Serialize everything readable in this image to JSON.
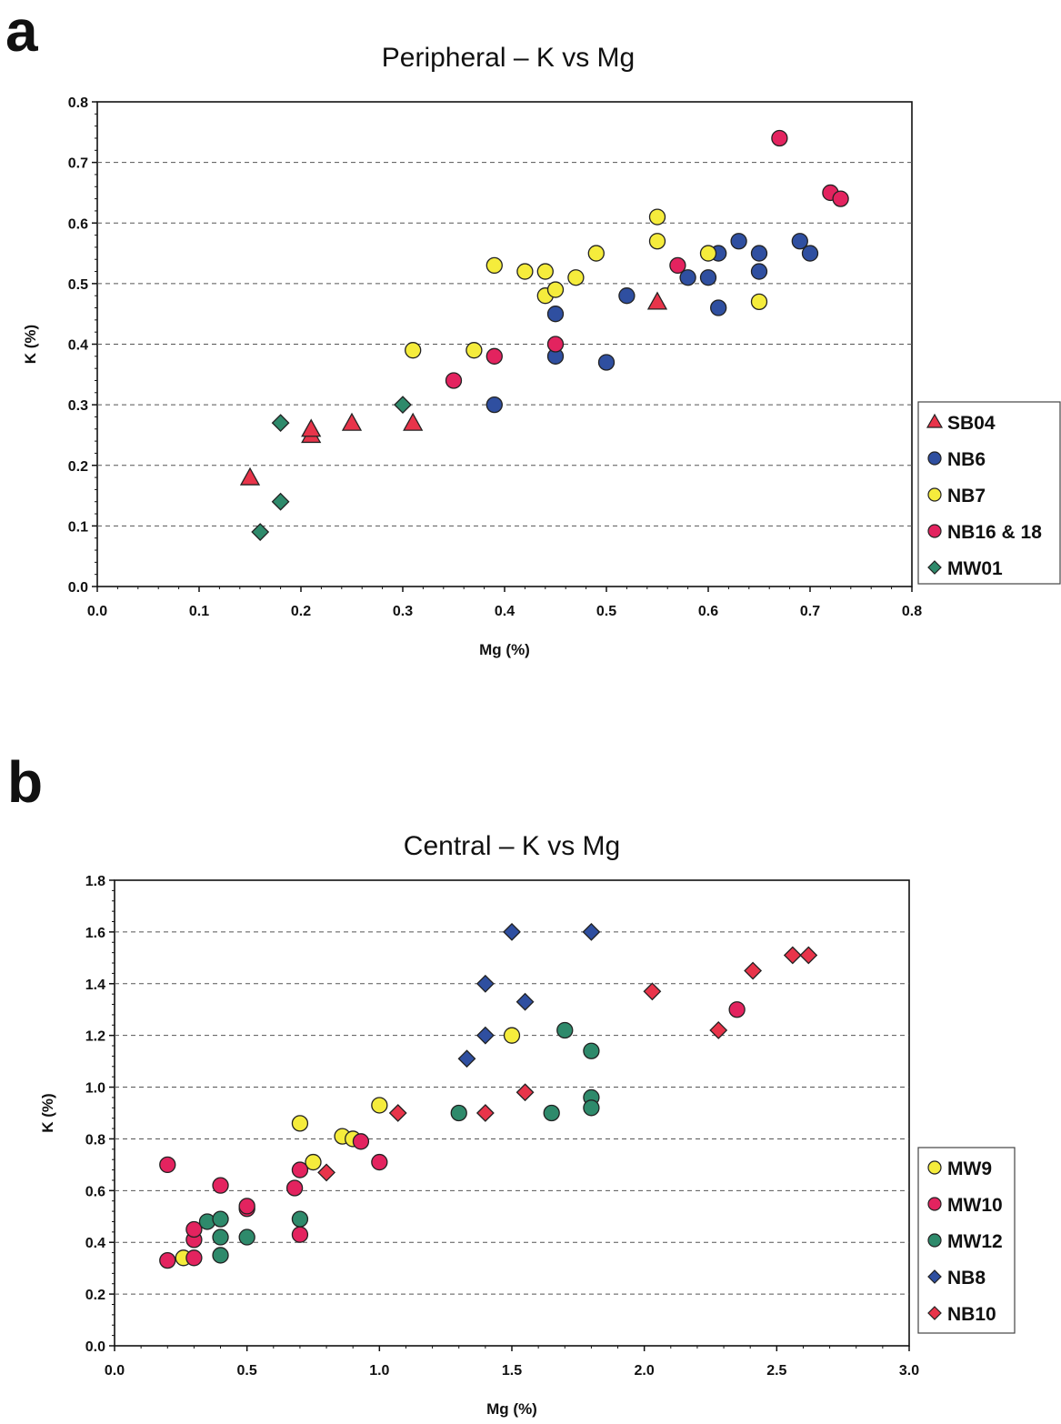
{
  "panels": {
    "a": {
      "letter": "a"
    },
    "b": {
      "letter": "b"
    }
  },
  "chart_data": [
    {
      "type": "scatter",
      "title": "Peripheral – K vs Mg",
      "xlabel": "Mg (%)",
      "ylabel": "K (%)",
      "xlim": [
        0,
        0.8
      ],
      "ylim": [
        0,
        0.8
      ],
      "xticks": [
        "0.0",
        "0.1",
        "0.2",
        "0.3",
        "0.4",
        "0.5",
        "0.6",
        "0.7",
        "0.8"
      ],
      "yticks": [
        "0.0",
        "0.1",
        "0.2",
        "0.3",
        "0.4",
        "0.5",
        "0.6",
        "0.7",
        "0.8"
      ],
      "grid": "horizontal dashed",
      "legend_position": "right",
      "series": [
        {
          "name": "SB04",
          "marker": "triangle",
          "color": "#e8344a",
          "points": [
            [
              0.15,
              0.18
            ],
            [
              0.21,
              0.25
            ],
            [
              0.21,
              0.26
            ],
            [
              0.25,
              0.27
            ],
            [
              0.31,
              0.27
            ],
            [
              0.55,
              0.47
            ]
          ]
        },
        {
          "name": "NB6",
          "marker": "circle",
          "color": "#2f4fa0",
          "points": [
            [
              0.39,
              0.3
            ],
            [
              0.45,
              0.38
            ],
            [
              0.45,
              0.45
            ],
            [
              0.5,
              0.37
            ],
            [
              0.52,
              0.48
            ],
            [
              0.58,
              0.51
            ],
            [
              0.6,
              0.51
            ],
            [
              0.61,
              0.55
            ],
            [
              0.61,
              0.46
            ],
            [
              0.63,
              0.57
            ],
            [
              0.65,
              0.55
            ],
            [
              0.65,
              0.52
            ],
            [
              0.69,
              0.57
            ],
            [
              0.7,
              0.55
            ]
          ]
        },
        {
          "name": "NB7",
          "marker": "circle",
          "color": "#f5ec3c",
          "points": [
            [
              0.31,
              0.39
            ],
            [
              0.37,
              0.39
            ],
            [
              0.39,
              0.53
            ],
            [
              0.42,
              0.52
            ],
            [
              0.44,
              0.52
            ],
            [
              0.44,
              0.48
            ],
            [
              0.45,
              0.49
            ],
            [
              0.47,
              0.51
            ],
            [
              0.49,
              0.55
            ],
            [
              0.55,
              0.61
            ],
            [
              0.55,
              0.57
            ],
            [
              0.6,
              0.55
            ],
            [
              0.65,
              0.47
            ]
          ]
        },
        {
          "name": "NB16 & 18",
          "marker": "circle",
          "color": "#e3235f",
          "points": [
            [
              0.35,
              0.34
            ],
            [
              0.39,
              0.38
            ],
            [
              0.45,
              0.4
            ],
            [
              0.57,
              0.53
            ],
            [
              0.67,
              0.74
            ],
            [
              0.72,
              0.65
            ],
            [
              0.73,
              0.64
            ]
          ]
        },
        {
          "name": "MW01",
          "marker": "diamond",
          "color": "#2e8a6b",
          "points": [
            [
              0.16,
              0.09
            ],
            [
              0.18,
              0.14
            ],
            [
              0.18,
              0.27
            ],
            [
              0.3,
              0.3
            ]
          ]
        }
      ]
    },
    {
      "type": "scatter",
      "title": "Central – K vs Mg",
      "xlabel": "Mg (%)",
      "ylabel": "K (%)",
      "xlim": [
        0,
        3.0
      ],
      "ylim": [
        0,
        1.8
      ],
      "xticks": [
        "0.0",
        "0.5",
        "1.0",
        "1.5",
        "2.0",
        "2.5",
        "3.0"
      ],
      "yticks": [
        "0.0",
        "0.2",
        "0.4",
        "0.6",
        "0.8",
        "1.0",
        "1.2",
        "1.4",
        "1.6",
        "1.8"
      ],
      "grid": "horizontal dashed",
      "legend_position": "right",
      "series": [
        {
          "name": "MW9",
          "marker": "circle",
          "color": "#f5ec3c",
          "points": [
            [
              0.26,
              0.34
            ],
            [
              0.7,
              0.86
            ],
            [
              0.75,
              0.71
            ],
            [
              0.86,
              0.81
            ],
            [
              0.9,
              0.8
            ],
            [
              1.0,
              0.93
            ],
            [
              1.5,
              1.2
            ]
          ]
        },
        {
          "name": "MW10",
          "marker": "circle",
          "color": "#e3235f",
          "points": [
            [
              0.2,
              0.33
            ],
            [
              0.2,
              0.7
            ],
            [
              0.3,
              0.34
            ],
            [
              0.3,
              0.41
            ],
            [
              0.3,
              0.45
            ],
            [
              0.4,
              0.62
            ],
            [
              0.5,
              0.53
            ],
            [
              0.5,
              0.54
            ],
            [
              0.68,
              0.61
            ],
            [
              0.7,
              0.68
            ],
            [
              0.7,
              0.43
            ],
            [
              0.93,
              0.79
            ],
            [
              1.0,
              0.71
            ],
            [
              2.35,
              1.3
            ]
          ]
        },
        {
          "name": "MW12",
          "marker": "circle",
          "color": "#2e8a6b",
          "points": [
            [
              0.35,
              0.48
            ],
            [
              0.4,
              0.49
            ],
            [
              0.4,
              0.42
            ],
            [
              0.4,
              0.35
            ],
            [
              0.5,
              0.42
            ],
            [
              0.7,
              0.49
            ],
            [
              1.3,
              0.9
            ],
            [
              1.65,
              0.9
            ],
            [
              1.7,
              1.22
            ],
            [
              1.8,
              1.14
            ],
            [
              1.8,
              0.96
            ],
            [
              1.8,
              0.92
            ]
          ]
        },
        {
          "name": "NB8",
          "marker": "diamond",
          "color": "#2f4fa0",
          "points": [
            [
              1.33,
              1.11
            ],
            [
              1.4,
              1.4
            ],
            [
              1.4,
              1.2
            ],
            [
              1.5,
              1.6
            ],
            [
              1.55,
              1.33
            ],
            [
              1.8,
              1.6
            ]
          ]
        },
        {
          "name": "NB10",
          "marker": "diamond",
          "color": "#e8344a",
          "points": [
            [
              0.8,
              0.67
            ],
            [
              1.07,
              0.9
            ],
            [
              1.4,
              0.9
            ],
            [
              1.55,
              0.98
            ],
            [
              2.03,
              1.37
            ],
            [
              2.28,
              1.22
            ],
            [
              2.41,
              1.45
            ],
            [
              2.56,
              1.51
            ],
            [
              2.62,
              1.51
            ]
          ]
        }
      ]
    }
  ]
}
